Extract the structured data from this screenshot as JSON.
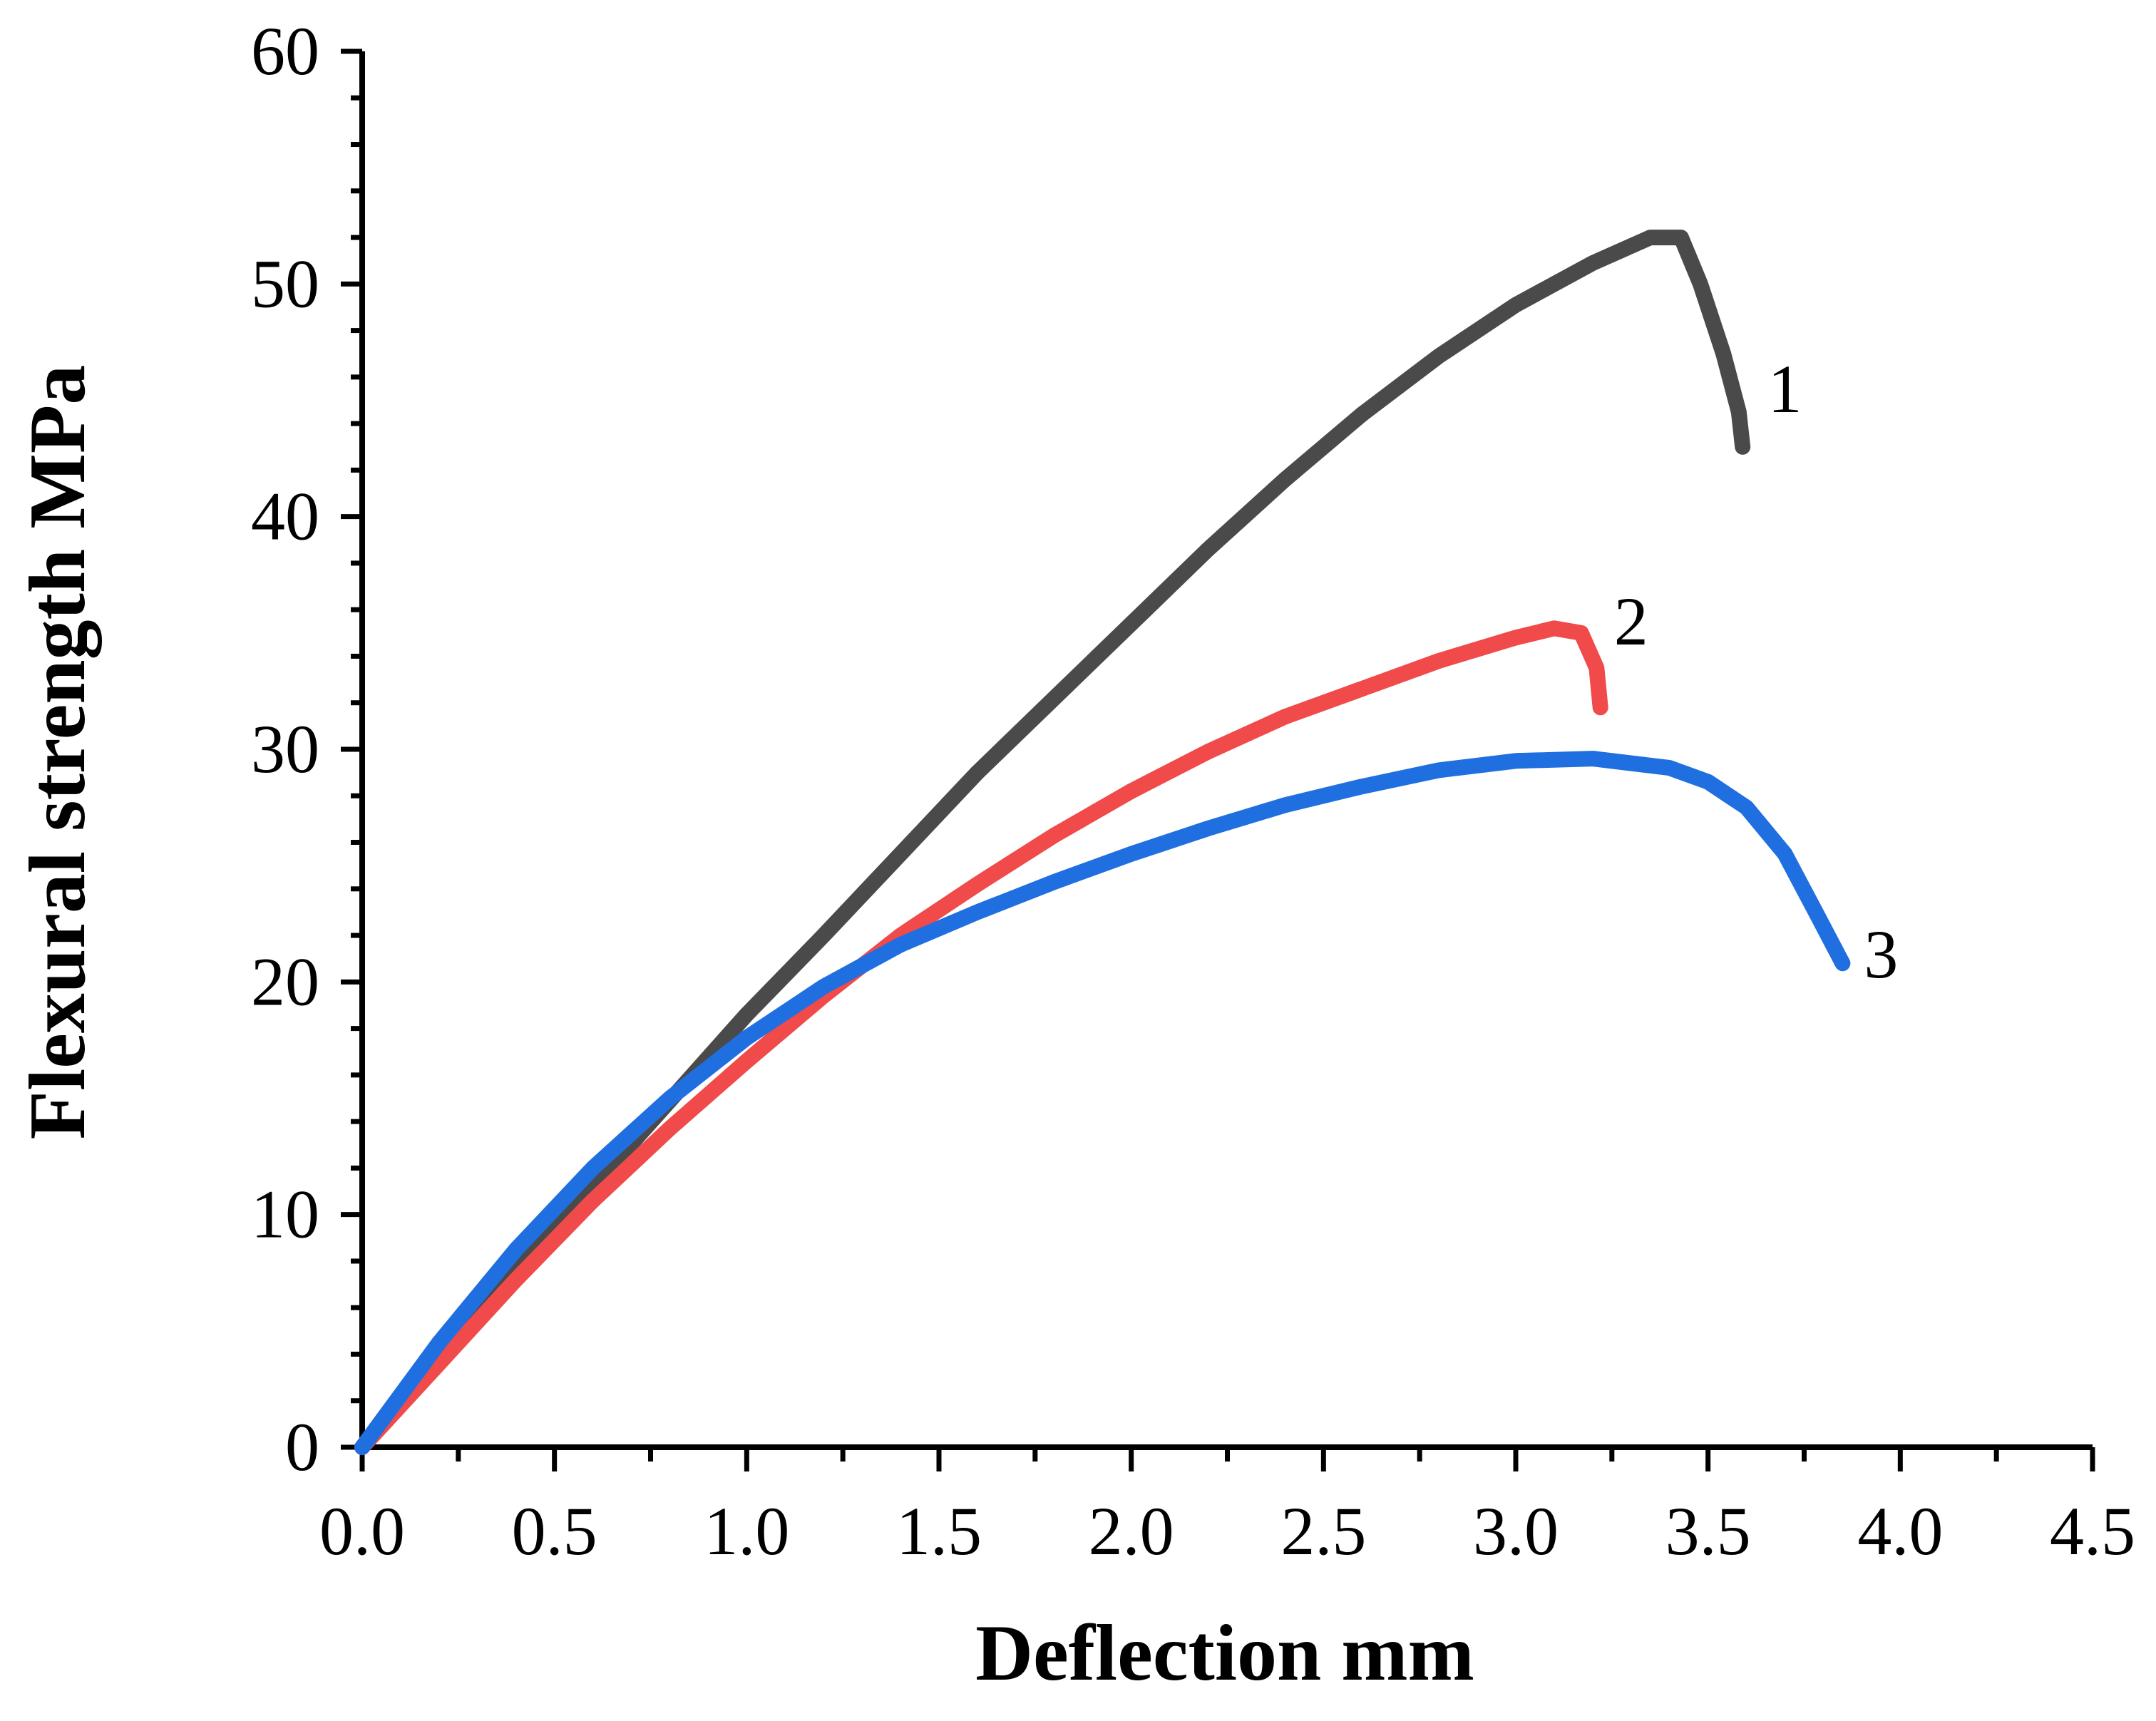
{
  "chart_data": {
    "type": "line",
    "title": "",
    "xlabel": "Deflection mm",
    "ylabel": "Flexural strength MPa",
    "xlim": [
      0,
      4.5
    ],
    "ylim": [
      0,
      60
    ],
    "grid": false,
    "x_ticks": [
      0,
      0.5,
      1.0,
      1.5,
      2.0,
      2.5,
      3.0,
      3.5,
      4.0,
      4.5
    ],
    "x_tick_labels": [
      "0.0",
      "0.5",
      "1.0",
      "1.5",
      "2.0",
      "2.5",
      "3.0",
      "3.5",
      "4.0",
      "4.5"
    ],
    "y_ticks": [
      0,
      10,
      20,
      30,
      40,
      50,
      60
    ],
    "y_tick_labels": [
      "0",
      "10",
      "20",
      "30",
      "40",
      "50",
      "60"
    ],
    "series": [
      {
        "name": "1",
        "color": "#4a4a4a",
        "label_at": [
          3.7,
          44.5
        ],
        "points": [
          [
            0,
            0
          ],
          [
            0.2,
            3.7
          ],
          [
            0.4,
            7.5
          ],
          [
            0.6,
            11.2
          ],
          [
            0.8,
            14.9
          ],
          [
            1.0,
            18.6
          ],
          [
            1.2,
            22.0
          ],
          [
            1.4,
            25.5
          ],
          [
            1.6,
            29.0
          ],
          [
            1.8,
            32.2
          ],
          [
            2.0,
            35.4
          ],
          [
            2.2,
            38.6
          ],
          [
            2.4,
            41.6
          ],
          [
            2.6,
            44.4
          ],
          [
            2.8,
            46.9
          ],
          [
            3.0,
            49.1
          ],
          [
            3.2,
            50.9
          ],
          [
            3.35,
            52.0
          ],
          [
            3.43,
            52.0
          ],
          [
            3.48,
            50.0
          ],
          [
            3.54,
            47.0
          ],
          [
            3.58,
            44.5
          ],
          [
            3.59,
            43.0
          ]
        ]
      },
      {
        "name": "2",
        "color": "#f04a4a",
        "label_at": [
          3.3,
          34.5
        ],
        "points": [
          [
            0,
            0
          ],
          [
            0.2,
            3.6
          ],
          [
            0.4,
            7.2
          ],
          [
            0.6,
            10.6
          ],
          [
            0.8,
            13.7
          ],
          [
            1.0,
            16.6
          ],
          [
            1.2,
            19.4
          ],
          [
            1.4,
            22.0
          ],
          [
            1.6,
            24.2
          ],
          [
            1.8,
            26.3
          ],
          [
            2.0,
            28.2
          ],
          [
            2.2,
            29.9
          ],
          [
            2.4,
            31.4
          ],
          [
            2.6,
            32.6
          ],
          [
            2.8,
            33.8
          ],
          [
            3.0,
            34.8
          ],
          [
            3.1,
            35.2
          ],
          [
            3.17,
            35.0
          ],
          [
            3.21,
            33.5
          ],
          [
            3.22,
            31.8
          ]
        ]
      },
      {
        "name": "3",
        "color": "#1f6fe0",
        "label_at": [
          3.95,
          20.2
        ],
        "points": [
          [
            0,
            0
          ],
          [
            0.2,
            4.5
          ],
          [
            0.4,
            8.5
          ],
          [
            0.6,
            12.0
          ],
          [
            0.8,
            15.0
          ],
          [
            1.0,
            17.6
          ],
          [
            1.2,
            19.8
          ],
          [
            1.4,
            21.6
          ],
          [
            1.6,
            23.0
          ],
          [
            1.8,
            24.3
          ],
          [
            2.0,
            25.5
          ],
          [
            2.2,
            26.6
          ],
          [
            2.4,
            27.6
          ],
          [
            2.6,
            28.4
          ],
          [
            2.8,
            29.1
          ],
          [
            3.0,
            29.5
          ],
          [
            3.2,
            29.6
          ],
          [
            3.4,
            29.2
          ],
          [
            3.5,
            28.6
          ],
          [
            3.6,
            27.5
          ],
          [
            3.7,
            25.5
          ],
          [
            3.78,
            23.0
          ],
          [
            3.85,
            20.8
          ]
        ]
      }
    ]
  }
}
